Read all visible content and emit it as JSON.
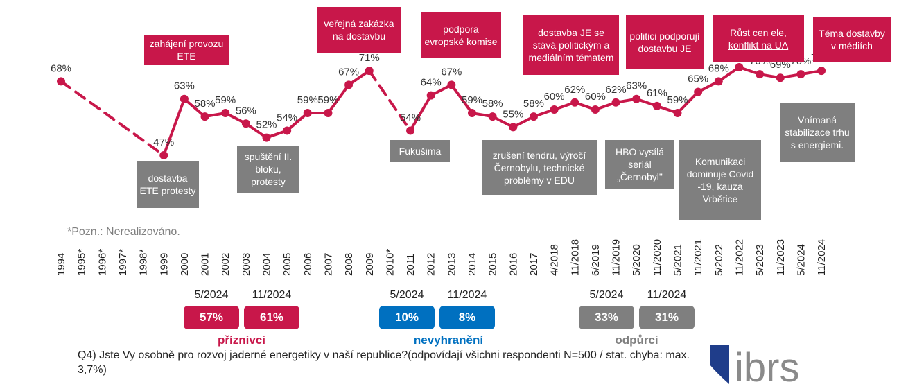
{
  "chart_data": {
    "type": "line",
    "x": [
      "1994",
      "1995*",
      "1996*",
      "1997*",
      "1998*",
      "1999",
      "2000",
      "2001",
      "2002",
      "2003",
      "2004",
      "2005",
      "2006",
      "2007",
      "2008",
      "2009",
      "2010*",
      "2011",
      "2012",
      "2013",
      "2014",
      "2015",
      "2016",
      "2017",
      "4/2018",
      "11/2018",
      "6/2019",
      "11/2019",
      "5/2020",
      "11/2020",
      "5/2021",
      "11/2021",
      "5/2022",
      "11/2022",
      "5/2023",
      "11/2023",
      "5/2024",
      "11/2024"
    ],
    "values": [
      68,
      null,
      null,
      null,
      null,
      47,
      63,
      58,
      59,
      56,
      52,
      54,
      59,
      59,
      67,
      71,
      null,
      54,
      64,
      67,
      59,
      58,
      55,
      58,
      60,
      62,
      60,
      62,
      63,
      61,
      59,
      65,
      68,
      72,
      70,
      69,
      70,
      71
    ],
    "value_labels": [
      "68%",
      "",
      "",
      "",
      "",
      "47%",
      "63%",
      "58%",
      "59%",
      "56%",
      "52%",
      "54%",
      "59%",
      "59%",
      "67%",
      "71%",
      "",
      "54%",
      "64%",
      "67%",
      "59%",
      "58%",
      "55%",
      "58%",
      "60%",
      "62%",
      "60%",
      "62%",
      "63%",
      "61%",
      "59%",
      "65%",
      "68%",
      "72%",
      "70%",
      "69%",
      "70%",
      "71%"
    ],
    "dashed_segments": [
      [
        0,
        5
      ],
      [
        15,
        17
      ]
    ],
    "ylim": [
      40,
      80
    ],
    "line_color": "#c8174a",
    "annotations_up": [
      {
        "text": "zahájení provozu ETE",
        "x_index": 6
      },
      {
        "text": "veřejná zakázka na dostavbu",
        "x_index": 14
      },
      {
        "text": "podpora evropské komise",
        "x_index": 19
      },
      {
        "text": "dostavba JE se stává politickým a mediálním tématem",
        "x_index": 24
      },
      {
        "text": "politici podporují dostavbu JE",
        "x_index": 29
      },
      {
        "text_a": "Růst cen ele,",
        "text_b": "konflikt na UA",
        "x_index": 33
      },
      {
        "text": "Téma dostavby v médiích",
        "x_index": 37
      }
    ],
    "annotations_down": [
      {
        "text": "dostavba ETE protesty",
        "x_index": 5
      },
      {
        "text": "spuštění II. bloku, protesty",
        "x_index": 10
      },
      {
        "text": "Fukušima",
        "x_index": 17
      },
      {
        "text": "zrušení tendru, výročí Černobylu, technické problémy v EDU",
        "x_index": 22
      },
      {
        "text": "HBO vysílá seriál „Černobyl\"",
        "x_index": 27
      },
      {
        "text": "Komunikaci dominuje Covid -19, kauza Vrbětice",
        "x_index": 31
      },
      {
        "text": "Vnímaná stabilizace trhu s energiemi.",
        "x_index": 37
      }
    ],
    "note": "*Pozn.: Nerealizováno."
  },
  "summary": [
    {
      "label": "příznivci",
      "color": "#c8174a",
      "periods": [
        "5/2024",
        "11/2024"
      ],
      "values": [
        "57%",
        "61%"
      ]
    },
    {
      "label": "nevyhranění",
      "color": "#0070c0",
      "periods": [
        "5/2024",
        "11/2024"
      ],
      "values": [
        "10%",
        "8%"
      ]
    },
    {
      "label": "odpůrci",
      "color": "#7f7f7f",
      "periods": [
        "5/2024",
        "11/2024"
      ],
      "values": [
        "33%",
        "31%"
      ]
    }
  ],
  "question": "Q4) Jste Vy osobně pro rozvoj jaderné energetiky v naší republice?(odpovídají všichni respondenti N=500 / stat. chyba: max. 3,7%)",
  "logo_text": "ibrs",
  "colors": {
    "accent": "#c8174a",
    "neutral": "#7f7f7f",
    "blue": "#0070c0",
    "logo_blue": "#1f3d8a"
  }
}
